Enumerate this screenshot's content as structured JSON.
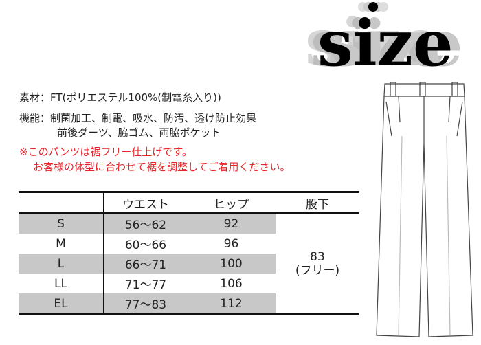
{
  "logo_text": "size",
  "spec": {
    "material_label": "素材：",
    "material": "FT(ポリエステル100%(制電糸入り))",
    "function_label": "機能：",
    "function_line1": "制菌加工、制電、吸水、防汚、透け防止効果",
    "function_line2": "前後ダーツ、脇ゴム、両脇ポケット"
  },
  "note": {
    "line1": "※このパンツは裾フリー仕上げです。",
    "line2": "お客様の体型に合わせて裾を調整してご着用ください。",
    "color": "#e8242a"
  },
  "table": {
    "headers": [
      "",
      "ウエスト",
      "ヒップ",
      "股下"
    ],
    "rows": [
      {
        "size": "S",
        "waist": "56〜62",
        "hip": "92"
      },
      {
        "size": "M",
        "waist": "60〜66",
        "hip": "96"
      },
      {
        "size": "L",
        "waist": "66〜71",
        "hip": "100"
      },
      {
        "size": "LL",
        "waist": "71〜77",
        "hip": "106"
      },
      {
        "size": "EL",
        "waist": "77〜83",
        "hip": "112"
      }
    ],
    "inseam_value": "83",
    "inseam_note": "(フリー)"
  },
  "illustration": "pants-outline"
}
